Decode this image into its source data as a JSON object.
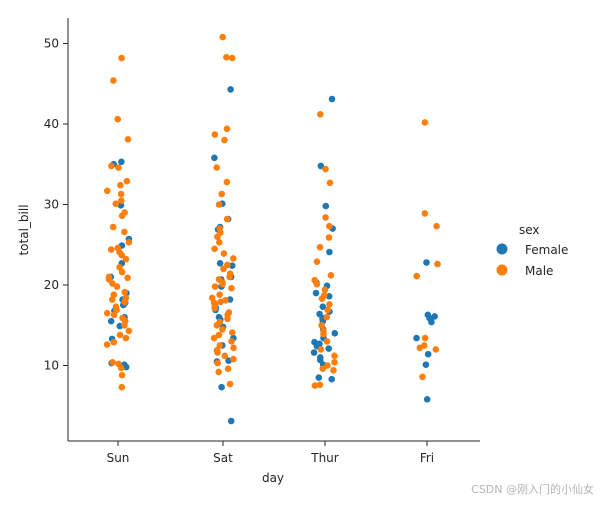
{
  "chart_data": {
    "type": "scatter",
    "subtype": "strip",
    "title": "",
    "xlabel": "day",
    "ylabel": "total_bill",
    "categories": [
      "Sun",
      "Sat",
      "Thur",
      "Fri"
    ],
    "yticks": [
      10,
      20,
      30,
      40,
      50
    ],
    "ylim": [
      0.7,
      53.5
    ],
    "grid": false,
    "legend": {
      "title": "sex",
      "placement": "right"
    },
    "series": [
      {
        "name": "Female",
        "color": "#1f77b4",
        "points": [
          [
            "Sun",
            35.3
          ],
          [
            "Sun",
            35.0
          ],
          [
            "Sun",
            29.9
          ],
          [
            "Sun",
            25.7
          ],
          [
            "Sun",
            24.9
          ],
          [
            "Sun",
            22.7
          ],
          [
            "Sun",
            21.0
          ],
          [
            "Sun",
            19.0
          ],
          [
            "Sun",
            18.2
          ],
          [
            "Sun",
            17.8
          ],
          [
            "Sun",
            17.5
          ],
          [
            "Sun",
            16.8
          ],
          [
            "Sun",
            16.0
          ],
          [
            "Sun",
            15.5
          ],
          [
            "Sun",
            14.9
          ],
          [
            "Sun",
            13.3
          ],
          [
            "Sun",
            10.3
          ],
          [
            "Sun",
            10.1
          ],
          [
            "Sun",
            9.8
          ],
          [
            "Sat",
            44.3
          ],
          [
            "Sat",
            35.8
          ],
          [
            "Sat",
            30.1
          ],
          [
            "Sat",
            28.2
          ],
          [
            "Sat",
            27.2
          ],
          [
            "Sat",
            26.9
          ],
          [
            "Sat",
            22.7
          ],
          [
            "Sat",
            22.4
          ],
          [
            "Sat",
            21.0
          ],
          [
            "Sat",
            20.7
          ],
          [
            "Sat",
            19.8
          ],
          [
            "Sat",
            18.2
          ],
          [
            "Sat",
            17.2
          ],
          [
            "Sat",
            16.9
          ],
          [
            "Sat",
            16.0
          ],
          [
            "Sat",
            15.7
          ],
          [
            "Sat",
            14.8
          ],
          [
            "Sat",
            13.4
          ],
          [
            "Sat",
            12.5
          ],
          [
            "Sat",
            10.6
          ],
          [
            "Sat",
            10.5
          ],
          [
            "Sat",
            7.3
          ],
          [
            "Sat",
            3.1
          ],
          [
            "Thur",
            43.1
          ],
          [
            "Thur",
            34.8
          ],
          [
            "Thur",
            29.8
          ],
          [
            "Thur",
            27.0
          ],
          [
            "Thur",
            24.1
          ],
          [
            "Thur",
            20.3
          ],
          [
            "Thur",
            19.9
          ],
          [
            "Thur",
            19.0
          ],
          [
            "Thur",
            18.6
          ],
          [
            "Thur",
            17.3
          ],
          [
            "Thur",
            16.7
          ],
          [
            "Thur",
            16.4
          ],
          [
            "Thur",
            15.9
          ],
          [
            "Thur",
            15.5
          ],
          [
            "Thur",
            14.5
          ],
          [
            "Thur",
            14.0
          ],
          [
            "Thur",
            13.4
          ],
          [
            "Thur",
            12.9
          ],
          [
            "Thur",
            12.7
          ],
          [
            "Thur",
            12.4
          ],
          [
            "Thur",
            12.1
          ],
          [
            "Thur",
            11.6
          ],
          [
            "Thur",
            11.0
          ],
          [
            "Thur",
            10.7
          ],
          [
            "Thur",
            10.1
          ],
          [
            "Thur",
            8.5
          ],
          [
            "Thur",
            8.3
          ],
          [
            "Fri",
            22.8
          ],
          [
            "Fri",
            16.3
          ],
          [
            "Fri",
            16.1
          ],
          [
            "Fri",
            15.9
          ],
          [
            "Fri",
            15.4
          ],
          [
            "Fri",
            13.4
          ],
          [
            "Fri",
            11.4
          ],
          [
            "Fri",
            10.1
          ],
          [
            "Fri",
            5.8
          ]
        ]
      },
      {
        "name": "Male",
        "color": "#ff7f0e",
        "points": [
          [
            "Sun",
            48.2
          ],
          [
            "Sun",
            45.4
          ],
          [
            "Sun",
            40.6
          ],
          [
            "Sun",
            38.1
          ],
          [
            "Sun",
            34.8
          ],
          [
            "Sun",
            34.6
          ],
          [
            "Sun",
            32.9
          ],
          [
            "Sun",
            32.4
          ],
          [
            "Sun",
            31.7
          ],
          [
            "Sun",
            31.3
          ],
          [
            "Sun",
            30.5
          ],
          [
            "Sun",
            30.1
          ],
          [
            "Sun",
            29.0
          ],
          [
            "Sun",
            28.6
          ],
          [
            "Sun",
            27.2
          ],
          [
            "Sun",
            26.6
          ],
          [
            "Sun",
            25.3
          ],
          [
            "Sun",
            24.6
          ],
          [
            "Sun",
            24.4
          ],
          [
            "Sun",
            24.1
          ],
          [
            "Sun",
            23.7
          ],
          [
            "Sun",
            23.2
          ],
          [
            "Sun",
            22.2
          ],
          [
            "Sun",
            21.6
          ],
          [
            "Sun",
            21.0
          ],
          [
            "Sun",
            20.9
          ],
          [
            "Sun",
            20.7
          ],
          [
            "Sun",
            20.2
          ],
          [
            "Sun",
            19.8
          ],
          [
            "Sun",
            19.1
          ],
          [
            "Sun",
            18.8
          ],
          [
            "Sun",
            18.4
          ],
          [
            "Sun",
            18.2
          ],
          [
            "Sun",
            17.9
          ],
          [
            "Sun",
            17.3
          ],
          [
            "Sun",
            16.9
          ],
          [
            "Sun",
            16.5
          ],
          [
            "Sun",
            16.3
          ],
          [
            "Sun",
            15.9
          ],
          [
            "Sun",
            15.5
          ],
          [
            "Sun",
            15.0
          ],
          [
            "Sun",
            14.3
          ],
          [
            "Sun",
            13.8
          ],
          [
            "Sun",
            13.4
          ],
          [
            "Sun",
            12.9
          ],
          [
            "Sun",
            12.6
          ],
          [
            "Sun",
            10.4
          ],
          [
            "Sun",
            10.2
          ],
          [
            "Sun",
            9.7
          ],
          [
            "Sun",
            8.8
          ],
          [
            "Sun",
            7.3
          ],
          [
            "Sat",
            50.8
          ],
          [
            "Sat",
            48.3
          ],
          [
            "Sat",
            48.2
          ],
          [
            "Sat",
            39.4
          ],
          [
            "Sat",
            38.7
          ],
          [
            "Sat",
            38.0
          ],
          [
            "Sat",
            34.6
          ],
          [
            "Sat",
            32.8
          ],
          [
            "Sat",
            31.3
          ],
          [
            "Sat",
            30.0
          ],
          [
            "Sat",
            28.2
          ],
          [
            "Sat",
            27.0
          ],
          [
            "Sat",
            26.5
          ],
          [
            "Sat",
            26.0
          ],
          [
            "Sat",
            25.3
          ],
          [
            "Sat",
            24.5
          ],
          [
            "Sat",
            23.9
          ],
          [
            "Sat",
            23.3
          ],
          [
            "Sat",
            22.5
          ],
          [
            "Sat",
            22.0
          ],
          [
            "Sat",
            21.4
          ],
          [
            "Sat",
            21.0
          ],
          [
            "Sat",
            20.7
          ],
          [
            "Sat",
            20.3
          ],
          [
            "Sat",
            20.1
          ],
          [
            "Sat",
            19.8
          ],
          [
            "Sat",
            19.6
          ],
          [
            "Sat",
            18.8
          ],
          [
            "Sat",
            18.4
          ],
          [
            "Sat",
            18.1
          ],
          [
            "Sat",
            17.9
          ],
          [
            "Sat",
            17.8
          ],
          [
            "Sat",
            17.6
          ],
          [
            "Sat",
            17.3
          ],
          [
            "Sat",
            17.1
          ],
          [
            "Sat",
            16.6
          ],
          [
            "Sat",
            16.3
          ],
          [
            "Sat",
            15.8
          ],
          [
            "Sat",
            15.4
          ],
          [
            "Sat",
            15.0
          ],
          [
            "Sat",
            14.5
          ],
          [
            "Sat",
            14.1
          ],
          [
            "Sat",
            13.8
          ],
          [
            "Sat",
            13.4
          ],
          [
            "Sat",
            13.0
          ],
          [
            "Sat",
            12.5
          ],
          [
            "Sat",
            12.2
          ],
          [
            "Sat",
            11.9
          ],
          [
            "Sat",
            11.6
          ],
          [
            "Sat",
            11.2
          ],
          [
            "Sat",
            10.8
          ],
          [
            "Sat",
            10.3
          ],
          [
            "Sat",
            9.6
          ],
          [
            "Sat",
            9.2
          ],
          [
            "Sat",
            7.7
          ],
          [
            "Thur",
            41.2
          ],
          [
            "Thur",
            34.4
          ],
          [
            "Thur",
            32.7
          ],
          [
            "Thur",
            28.4
          ],
          [
            "Thur",
            27.3
          ],
          [
            "Thur",
            25.9
          ],
          [
            "Thur",
            24.7
          ],
          [
            "Thur",
            22.9
          ],
          [
            "Thur",
            21.2
          ],
          [
            "Thur",
            20.6
          ],
          [
            "Thur",
            20.1
          ],
          [
            "Thur",
            19.4
          ],
          [
            "Thur",
            18.7
          ],
          [
            "Thur",
            18.3
          ],
          [
            "Thur",
            17.6
          ],
          [
            "Thur",
            16.9
          ],
          [
            "Thur",
            16.0
          ],
          [
            "Thur",
            15.0
          ],
          [
            "Thur",
            14.3
          ],
          [
            "Thur",
            13.9
          ],
          [
            "Thur",
            13.0
          ],
          [
            "Thur",
            12.0
          ],
          [
            "Thur",
            11.2
          ],
          [
            "Thur",
            10.4
          ],
          [
            "Thur",
            10.0
          ],
          [
            "Thur",
            9.6
          ],
          [
            "Thur",
            9.4
          ],
          [
            "Thur",
            7.6
          ],
          [
            "Thur",
            7.5
          ],
          [
            "Fri",
            40.2
          ],
          [
            "Fri",
            28.9
          ],
          [
            "Fri",
            27.3
          ],
          [
            "Fri",
            22.6
          ],
          [
            "Fri",
            21.1
          ],
          [
            "Fri",
            13.4
          ],
          [
            "Fri",
            12.5
          ],
          [
            "Fri",
            12.2
          ],
          [
            "Fri",
            12.0
          ],
          [
            "Fri",
            8.6
          ]
        ]
      }
    ]
  },
  "watermark": "CSDN @刚入门的小仙女"
}
